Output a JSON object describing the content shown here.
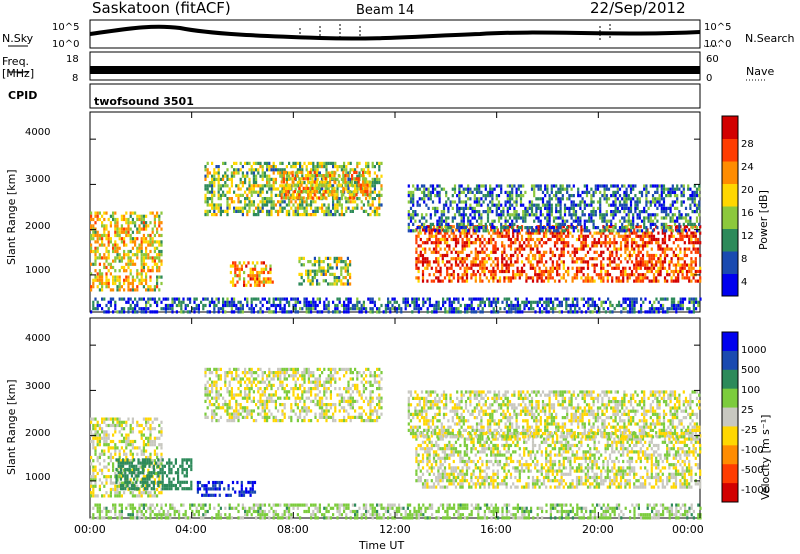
{
  "header": {
    "station": "Saskatoon (fitACF)",
    "beam": "Beam 14",
    "date": "22/Sep/2012"
  },
  "panels": {
    "nsky_label": "N.Sky",
    "nsearch_label": "N.Search",
    "noise_ticks": [
      "10^5",
      "10^0"
    ],
    "freq_label_line1": "Freq.",
    "freq_label_line2": "[MHz]",
    "freq_ticks": [
      "18",
      "8"
    ],
    "nave_label": "Nave",
    "nave_ticks": [
      "60",
      "0"
    ],
    "cpid_label": "CPID",
    "cpid_value": "twofsound 3501"
  },
  "chart_data": [
    {
      "type": "heatmap",
      "name_printed": "",
      "xlabel": "Time UT",
      "ylabel": "Slant Range [km]",
      "x_ticks": [
        "00:00",
        "04:00",
        "08:00",
        "12:00",
        "16:00",
        "20:00",
        "00:00"
      ],
      "y_ticks": [
        "1000",
        "2000",
        "3000",
        "4000"
      ],
      "xlim_hours": [
        0,
        24
      ],
      "ylim_km": [
        180,
        4600
      ],
      "colorbar": {
        "label": "Power [dB]",
        "ticks": [
          "28",
          "24",
          "20",
          "16",
          "12",
          "8",
          "4"
        ],
        "colors": [
          "#0000ee",
          "#1a4ab0",
          "#2d8a5a",
          "#8cc83c",
          "#ffd700",
          "#ff8c00",
          "#ff3c00",
          "#d20000"
        ]
      },
      "echo_regions": [
        {
          "t0": 0.0,
          "t1": 2.8,
          "r0": 700,
          "r1": 2400,
          "level_db": 18
        },
        {
          "t0": 4.5,
          "t1": 11.5,
          "r0": 2300,
          "r1": 3500,
          "level_db": 14
        },
        {
          "t0": 7.5,
          "t1": 11.0,
          "r0": 2700,
          "r1": 3300,
          "level_db": 20
        },
        {
          "t0": 5.5,
          "t1": 7.2,
          "r0": 750,
          "r1": 1300,
          "level_db": 22
        },
        {
          "t0": 8.2,
          "t1": 10.2,
          "r0": 800,
          "r1": 1400,
          "level_db": 14
        },
        {
          "t0": 12.8,
          "t1": 24.0,
          "r0": 850,
          "r1": 2100,
          "level_db": 26
        },
        {
          "t0": 12.5,
          "t1": 24.0,
          "r0": 2000,
          "r1": 3000,
          "level_db": 8
        },
        {
          "t0": 0.0,
          "t1": 24.0,
          "r0": 180,
          "r1": 500,
          "level_db": 6
        }
      ]
    },
    {
      "type": "heatmap",
      "name_printed": "",
      "xlabel": "Time UT",
      "ylabel": "Slant Range [km]",
      "x_ticks": [
        "00:00",
        "04:00",
        "08:00",
        "12:00",
        "16:00",
        "20:00",
        "00:00"
      ],
      "y_ticks": [
        "1000",
        "2000",
        "3000",
        "4000"
      ],
      "xlim_hours": [
        0,
        24
      ],
      "ylim_km": [
        180,
        4600
      ],
      "colorbar": {
        "label": "Velocity [m s⁻¹]",
        "ticks": [
          "1000",
          "500",
          "100",
          "25",
          "-25",
          "-100",
          "-500",
          "-1000"
        ],
        "colors": [
          "#0000ee",
          "#1a4ab0",
          "#2d8a5a",
          "#7ccc3c",
          "#c8c8c0",
          "#ffd700",
          "#ff8c00",
          "#ff3c00",
          "#d20000"
        ]
      },
      "echo_regions": [
        {
          "t0": 0.0,
          "t1": 2.8,
          "r0": 700,
          "r1": 2400,
          "velocity": 0
        },
        {
          "t0": 1.0,
          "t1": 4.0,
          "r0": 800,
          "r1": 1500,
          "velocity": 300
        },
        {
          "t0": 4.2,
          "t1": 6.5,
          "r0": 700,
          "r1": 1000,
          "velocity": 1000
        },
        {
          "t0": 4.5,
          "t1": 11.5,
          "r0": 2300,
          "r1": 3500,
          "velocity": 0
        },
        {
          "t0": 12.8,
          "t1": 24.0,
          "r0": 850,
          "r1": 2100,
          "velocity": 0
        },
        {
          "t0": 12.5,
          "t1": 24.0,
          "r0": 2000,
          "r1": 3000,
          "velocity": 0
        },
        {
          "t0": 0.0,
          "t1": 24.0,
          "r0": 180,
          "r1": 500,
          "velocity": 50
        }
      ]
    }
  ]
}
